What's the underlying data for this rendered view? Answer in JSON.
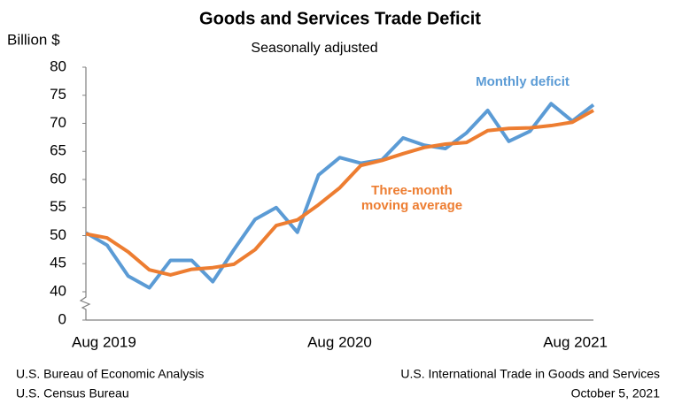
{
  "chart_data": {
    "type": "line",
    "title": "Goods and Services Trade Deficit",
    "subtitle": "Seasonally adjusted",
    "y_label": "Billion $",
    "categories": [
      "Aug 2019",
      null,
      null,
      null,
      null,
      null,
      null,
      null,
      null,
      null,
      null,
      null,
      "Aug 2020",
      null,
      null,
      null,
      null,
      null,
      null,
      null,
      null,
      null,
      null,
      null,
      "Aug 2021"
    ],
    "series": [
      {
        "name": "Monthly deficit",
        "color": "#5b9bd5",
        "values": [
          50.5,
          48.3,
          42.8,
          40.7,
          45.6,
          45.6,
          41.8,
          47.5,
          52.9,
          55.0,
          50.6,
          60.8,
          63.9,
          62.9,
          63.5,
          67.4,
          66.1,
          65.5,
          68.3,
          72.3,
          66.8,
          68.6,
          73.5,
          70.4,
          73.3
        ]
      },
      {
        "name": "Three-month moving average",
        "color": "#ed7d31",
        "values": [
          50.3,
          49.6,
          47.1,
          43.9,
          43.0,
          44.0,
          44.3,
          44.9,
          47.5,
          51.8,
          52.8,
          55.5,
          58.5,
          62.5,
          63.4,
          64.6,
          65.7,
          66.3,
          66.6,
          68.7,
          69.1,
          69.2,
          69.6,
          70.2,
          72.3
        ]
      }
    ],
    "ylim": [
      40,
      80
    ],
    "yticks": [
      0,
      40,
      45,
      50,
      55,
      60,
      65,
      70,
      75,
      80
    ],
    "axis_break": true,
    "grid": false,
    "notes_left": [
      "U.S. Bureau of Economic Analysis",
      "U.S. Census Bureau"
    ],
    "notes_right": [
      "U.S. International Trade in Goods and Services",
      "October 5, 2021"
    ]
  }
}
